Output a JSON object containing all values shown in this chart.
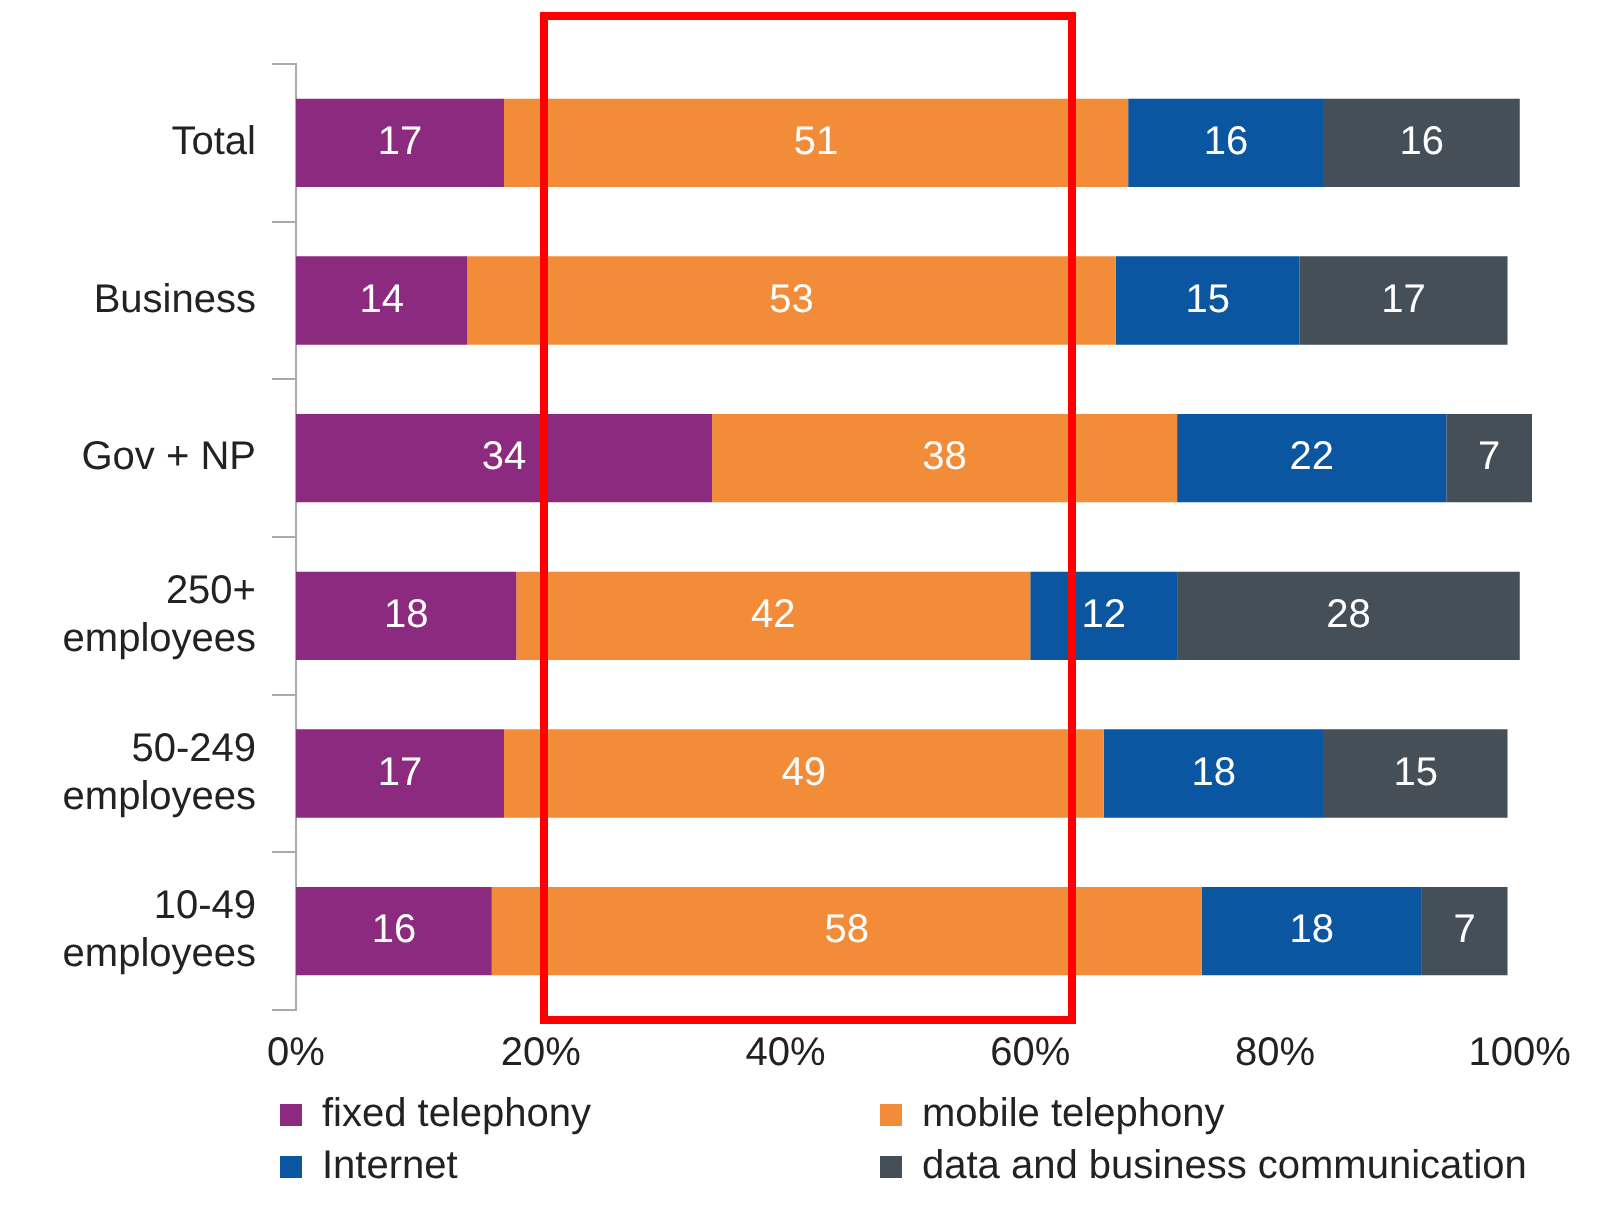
{
  "chart_data": {
    "type": "bar",
    "orientation": "horizontal",
    "stacked": true,
    "categories": [
      "Total",
      "Business",
      "Gov + NP",
      "250+ employees",
      "50-249 employees",
      "10-49 employees"
    ],
    "series": [
      {
        "name": "fixed telephony",
        "color": "#8b2a7e",
        "values": [
          17,
          14,
          34,
          18,
          17,
          16
        ]
      },
      {
        "name": "mobile telephony",
        "color": "#f28c38",
        "values": [
          51,
          53,
          38,
          42,
          49,
          58
        ]
      },
      {
        "name": "Internet",
        "color": "#0a56a0",
        "values": [
          16,
          15,
          22,
          12,
          18,
          18
        ]
      },
      {
        "name": "data and business communication",
        "color": "#444f57",
        "values": [
          16,
          17,
          7,
          28,
          15,
          7
        ]
      }
    ],
    "xlim": [
      0,
      101
    ],
    "xticks": [
      {
        "value": 0,
        "label": "0%"
      },
      {
        "value": 20,
        "label": "20%"
      },
      {
        "value": 40,
        "label": "40%"
      },
      {
        "value": 60,
        "label": "60%"
      },
      {
        "value": 80,
        "label": "80%"
      },
      {
        "value": 100,
        "label": "100%"
      }
    ],
    "data_labels": true,
    "grid": false,
    "legend": "bottom"
  }
}
